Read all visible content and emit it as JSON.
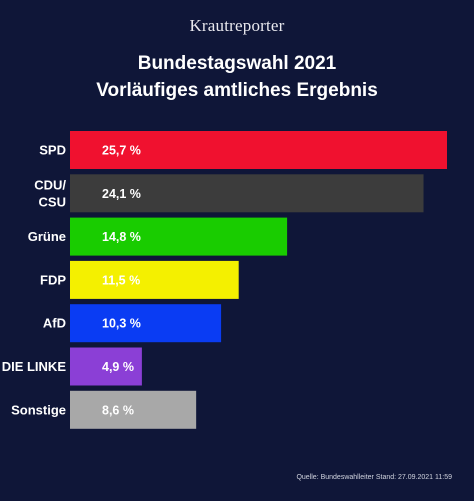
{
  "brand": "Krautreporter",
  "chart_data": {
    "type": "bar",
    "orientation": "horizontal",
    "title": [
      "Bundestagswahl 2021",
      "Vorläufiges amtliches Ergebnis"
    ],
    "categories": [
      [
        "SPD"
      ],
      [
        "CDU/",
        "CSU"
      ],
      [
        "Grüne"
      ],
      [
        "FDP"
      ],
      [
        "AfD"
      ],
      [
        "DIE LINKE"
      ],
      [
        "Sonstige"
      ]
    ],
    "values": [
      25.7,
      24.1,
      14.8,
      11.5,
      10.3,
      4.9,
      8.6
    ],
    "value_labels": [
      "25,7 %",
      "24,1 %",
      "14,8 %",
      "11,5 %",
      "10,3 %",
      "4,9 %",
      "8,6 %"
    ],
    "colors": [
      "#f0112f",
      "#3c3c3c",
      "#19cc00",
      "#f4f000",
      "#0a3cf3",
      "#8b3fd6",
      "#a8a8a8"
    ],
    "label_colors": [
      "#ffffff",
      "#ffffff",
      "#ffffff",
      "#ffffff",
      "#ffffff",
      "#ffffff",
      "#ffffff"
    ],
    "xlim": [
      0,
      25.7
    ],
    "grid": false,
    "legend": "none"
  },
  "source": "Quelle: Bundeswahlleiter Stand: 27.09.2021 11:59"
}
